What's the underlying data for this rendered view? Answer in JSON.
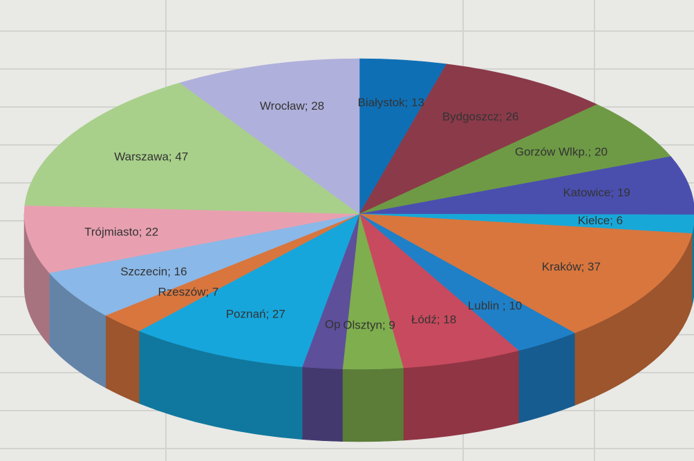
{
  "chart_data": {
    "type": "pie",
    "labels": [
      "Białystok; 13",
      "Bydgoszcz; 26",
      "Gorzów Wlkp.; 20",
      "Katowice; 19",
      "Kielce; 6",
      "Kraków; 37",
      "Lublin ; 10",
      "Łódź; 18",
      "Olsztyn; 9",
      "Op",
      "Poznań; 27",
      "Rzeszów; 7",
      "Szczecin; 16",
      "Trójmiasto; 22",
      "Warszawa; 47",
      "Wrocław; 28"
    ],
    "values": [
      13,
      26,
      20,
      19,
      6,
      37,
      10,
      18,
      9,
      6,
      27,
      7,
      16,
      22,
      47,
      28
    ],
    "colors": [
      "#0f6fb5",
      "#8b3a4a",
      "#6e9a45",
      "#4a4fae",
      "#18a8d8",
      "#d8763e",
      "#1f80c8",
      "#c84a5e",
      "#7fae4e",
      "#5e4f9a",
      "#16a6dc",
      "#d8763e",
      "#8ab8e8",
      "#e8a0b0",
      "#a8d08a",
      "#b0b0dc"
    ]
  }
}
